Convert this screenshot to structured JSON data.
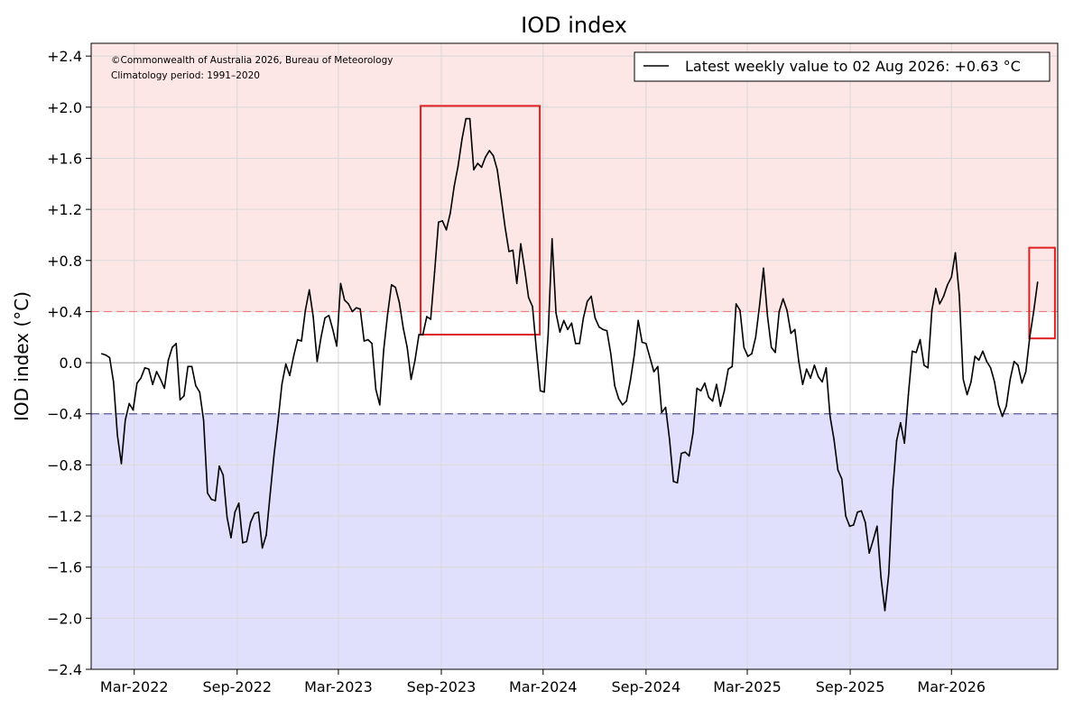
{
  "chart_data": {
    "type": "line",
    "title": "IOD index",
    "ylabel": "IOD index (°C)",
    "xlabel": "",
    "ylim": [
      -2.4,
      2.5
    ],
    "xlim": [
      "2021-12-14",
      "2026-09-07"
    ],
    "y_ticks": [
      -2.4,
      -2.0,
      -1.6,
      -1.2,
      -0.8,
      -0.4,
      0.0,
      0.4,
      0.8,
      1.2,
      1.6,
      2.0,
      2.4
    ],
    "y_tick_labels": [
      "−2.4",
      "−2.0",
      "−1.6",
      "−1.2",
      "−0.8",
      "−0.4",
      "0.0",
      "+0.4",
      "+0.8",
      "+1.2",
      "+1.6",
      "+2.0",
      "+2.4"
    ],
    "x_ticks": [
      {
        "label": "Mar-2022",
        "date": "2022-03-01"
      },
      {
        "label": "Sep-2022",
        "date": "2022-09-01"
      },
      {
        "label": "Mar-2023",
        "date": "2023-03-01"
      },
      {
        "label": "Sep-2023",
        "date": "2023-09-01"
      },
      {
        "label": "Mar-2024",
        "date": "2024-03-01"
      },
      {
        "label": "Sep-2024",
        "date": "2024-09-01"
      },
      {
        "label": "Mar-2025",
        "date": "2025-03-01"
      },
      {
        "label": "Sep-2025",
        "date": "2025-09-01"
      },
      {
        "label": "Mar-2026",
        "date": "2026-03-01"
      }
    ],
    "grid": true,
    "thresholds": {
      "positive": 0.4,
      "negative": -0.4
    },
    "colors": {
      "positive_zone": "#fde6e6",
      "negative_zone": "#e0e0fc",
      "positive_line": "#f08080",
      "negative_line": "#5a5a9a",
      "series": "#000000",
      "highlight_box": "#e02020"
    },
    "annotations": [
      "©Commonwealth of Australia 2026, Bureau of Meteorology",
      "Climatology period: 1991–2020"
    ],
    "legend": {
      "label": "Latest weekly value to 02 Aug 2026: +0.63 °C",
      "position": "top-right"
    },
    "highlights": [
      {
        "x_range": [
          "2023-07-26",
          "2024-02-24"
        ],
        "y_range": [
          0.22,
          2.01
        ]
      },
      {
        "x_range": [
          "2026-07-18",
          "2026-09-02"
        ],
        "y_range": [
          0.19,
          0.9
        ]
      }
    ],
    "series": [
      {
        "start": "2022-01-02",
        "interval_days": 7,
        "values": [
          0.07,
          0.06,
          0.04,
          -0.15,
          -0.57,
          -0.79,
          -0.45,
          -0.32,
          -0.37,
          -0.16,
          -0.12,
          -0.04,
          -0.05,
          -0.17,
          -0.07,
          -0.13,
          -0.2,
          0.02,
          0.12,
          0.15,
          -0.29,
          -0.26,
          -0.03,
          -0.03,
          -0.18,
          -0.23,
          -0.45,
          -1.02,
          -1.07,
          -1.08,
          -0.81,
          -0.88,
          -1.21,
          -1.37,
          -1.17,
          -1.1,
          -1.41,
          -1.4,
          -1.25,
          -1.18,
          -1.17,
          -1.45,
          -1.35,
          -1.03,
          -0.72,
          -0.46,
          -0.17,
          -0.01,
          -0.1,
          0.05,
          0.18,
          0.17,
          0.41,
          0.57,
          0.36,
          0.01,
          0.2,
          0.35,
          0.37,
          0.26,
          0.13,
          0.62,
          0.49,
          0.46,
          0.4,
          0.43,
          0.42,
          0.17,
          0.18,
          0.15,
          -0.21,
          -0.33,
          0.1,
          0.38,
          0.61,
          0.59,
          0.47,
          0.27,
          0.12,
          -0.13,
          0.02,
          0.22,
          0.22,
          0.36,
          0.34,
          0.71,
          1.1,
          1.11,
          1.04,
          1.17,
          1.38,
          1.54,
          1.75,
          1.91,
          1.91,
          1.51,
          1.56,
          1.53,
          1.61,
          1.66,
          1.62,
          1.51,
          1.29,
          1.06,
          0.87,
          0.88,
          0.62,
          0.93,
          0.73,
          0.51,
          0.44,
          0.1,
          -0.22,
          -0.23,
          0.22,
          0.97,
          0.39,
          0.24,
          0.33,
          0.26,
          0.31,
          0.15,
          0.15,
          0.35,
          0.48,
          0.52,
          0.35,
          0.28,
          0.26,
          0.25,
          0.07,
          -0.18,
          -0.28,
          -0.33,
          -0.3,
          -0.14,
          0.06,
          0.33,
          0.16,
          0.15,
          0.04,
          -0.07,
          -0.03,
          -0.39,
          -0.35,
          -0.6,
          -0.93,
          -0.94,
          -0.71,
          -0.7,
          -0.73,
          -0.55,
          -0.2,
          -0.22,
          -0.16,
          -0.27,
          -0.3,
          -0.17,
          -0.34,
          -0.22,
          -0.05,
          -0.03,
          0.46,
          0.41,
          0.12,
          0.05,
          0.07,
          0.2,
          0.45,
          0.74,
          0.37,
          0.12,
          0.08,
          0.4,
          0.5,
          0.41,
          0.23,
          0.26,
          0.01,
          -0.17,
          -0.05,
          -0.12,
          -0.02,
          -0.11,
          -0.15,
          -0.04,
          -0.42,
          -0.6,
          -0.84,
          -0.91,
          -1.2,
          -1.28,
          -1.27,
          -1.17,
          -1.16,
          -1.25,
          -1.49,
          -1.39,
          -1.28,
          -1.68,
          -1.94,
          -1.65,
          -1.0,
          -0.61,
          -0.47,
          -0.63,
          -0.25,
          0.09,
          0.08,
          0.18,
          -0.02,
          -0.04,
          0.41,
          0.58,
          0.46,
          0.52,
          0.61,
          0.67,
          0.86,
          0.53,
          -0.13,
          -0.25,
          -0.15,
          0.05,
          0.02,
          0.09,
          0.01,
          -0.04,
          -0.15,
          -0.33,
          -0.42,
          -0.34,
          -0.13,
          0.01,
          -0.02,
          -0.16,
          -0.07,
          0.2,
          0.4,
          0.63
        ]
      }
    ]
  }
}
